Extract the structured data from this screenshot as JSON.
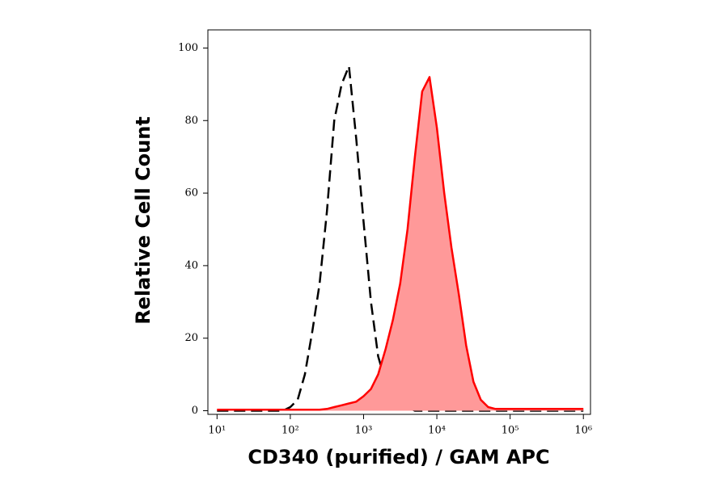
{
  "chart_data": {
    "type": "line",
    "y_label": "Relative Cell Count",
    "x_label": "CD340 (purified) / GAM APC",
    "xscale": "log",
    "xlim": [
      7.5,
      1250000
    ],
    "xticks": [
      {
        "value": 10,
        "label": "10¹"
      },
      {
        "value": 100,
        "label": "10²"
      },
      {
        "value": 1000,
        "label": "10³"
      },
      {
        "value": 10000,
        "label": "10⁴"
      },
      {
        "value": 100000,
        "label": "10⁵"
      },
      {
        "value": 1000000,
        "label": "10⁶"
      }
    ],
    "ylim": [
      -1,
      105
    ],
    "yticks": [
      0,
      20,
      40,
      60,
      80,
      100
    ],
    "x": [
      10,
      12.6,
      15.8,
      20,
      25.1,
      31.6,
      39.8,
      50.1,
      63.1,
      79.4,
      100,
      126,
      158,
      200,
      251,
      316,
      398,
      501,
      631,
      794,
      1000,
      1260,
      1580,
      2000,
      2510,
      3160,
      3980,
      5010,
      6310,
      7940,
      10000,
      12600,
      15800,
      20000,
      25100,
      31600,
      39800,
      50100,
      63100,
      79400,
      100000,
      126000,
      158000,
      200000,
      251000,
      316000,
      398000,
      501000,
      631000,
      794000,
      1000000
    ],
    "series": [
      {
        "color": "#000000",
        "dash": true,
        "values": [
          0,
          0,
          0,
          0,
          0,
          0,
          0,
          0,
          0,
          0,
          1,
          3,
          10,
          22,
          35,
          55,
          80,
          90,
          95,
          75,
          52,
          30,
          15,
          8,
          4,
          2,
          1,
          0,
          0,
          0,
          0,
          0,
          0,
          0,
          0,
          0,
          0,
          0,
          0,
          0,
          0,
          0,
          0,
          0,
          0,
          0,
          0,
          0,
          0,
          0,
          0
        ]
      },
      {
        "color": "#ff0000",
        "fill": "#ff9999",
        "values": [
          0.3,
          0.3,
          0.3,
          0.3,
          0.3,
          0.3,
          0.3,
          0.3,
          0.3,
          0.3,
          0.3,
          0.3,
          0.3,
          0.3,
          0.3,
          0.5,
          1,
          1.5,
          2,
          2.5,
          4,
          6,
          10,
          17,
          25,
          35,
          50,
          70,
          88,
          92,
          78,
          60,
          45,
          32,
          18,
          8,
          3,
          1,
          0.5,
          0.5,
          0.5,
          0.5,
          0.5,
          0.5,
          0.5,
          0.5,
          0.5,
          0.5,
          0.5,
          0.5,
          0.5
        ]
      }
    ]
  }
}
